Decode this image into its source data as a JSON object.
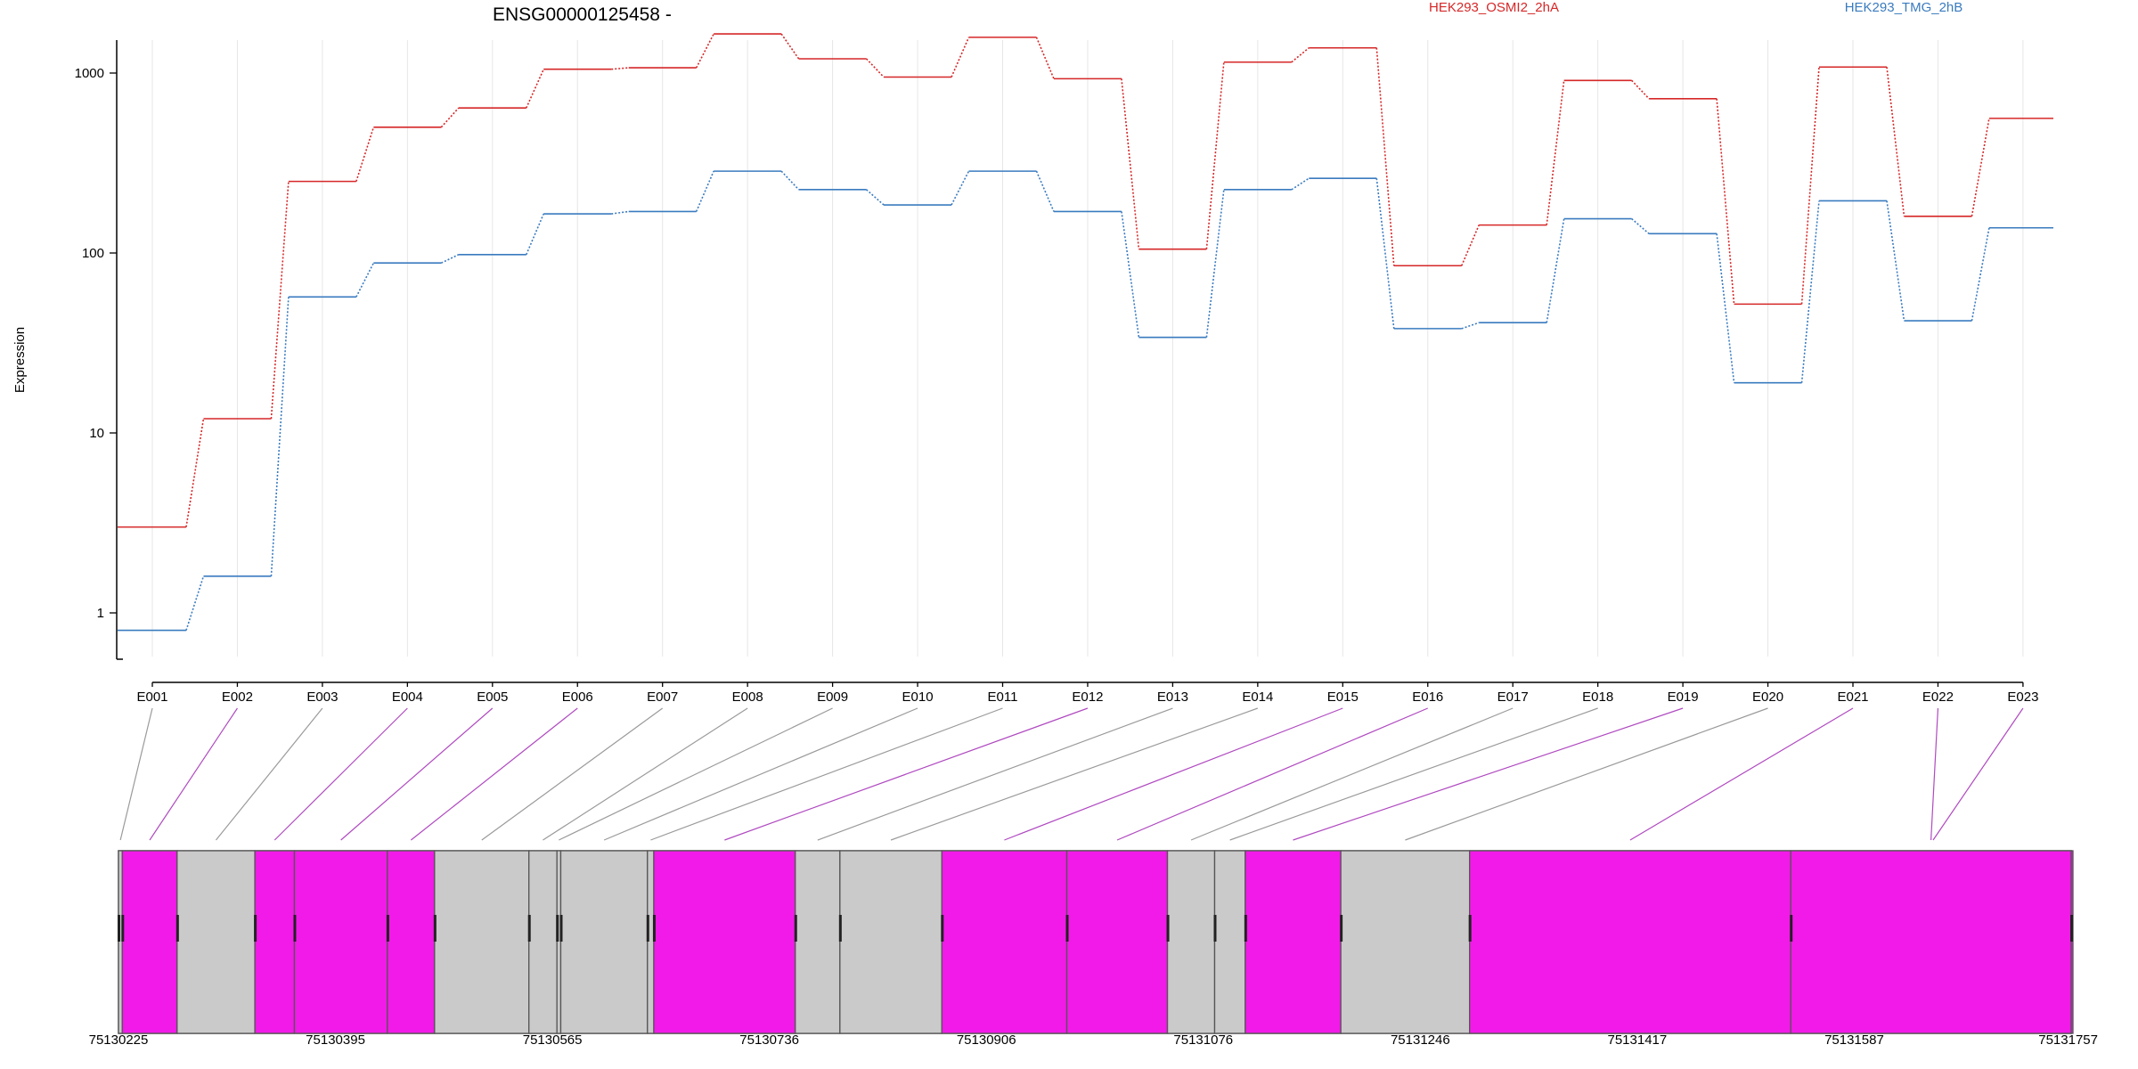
{
  "chart_data": {
    "type": "line",
    "title": "ENSG00000125458 -",
    "ylabel": "Expression",
    "yscale": "log",
    "ylim": [
      0.5,
      2000
    ],
    "yticks": [
      1,
      10,
      100,
      1000
    ],
    "ytick_labels": [
      "1",
      "10",
      "100",
      "1000"
    ],
    "grid": "vertical",
    "legend_placement": "top",
    "categories": [
      "E001",
      "E002",
      "E003",
      "E004",
      "E005",
      "E006",
      "E007",
      "E008",
      "E009",
      "E010",
      "E011",
      "E012",
      "E013",
      "E014",
      "E015",
      "E016",
      "E017",
      "E018",
      "E019",
      "E020",
      "E021",
      "E022",
      "E023"
    ],
    "series": [
      {
        "name": "HEK293_OSMI2_2hA",
        "color": "#d62728",
        "values": [
          3,
          12,
          250,
          500,
          640,
          1050,
          1070,
          1650,
          1200,
          950,
          1580,
          930,
          105,
          1150,
          1380,
          85,
          143,
          910,
          720,
          52,
          1080,
          160,
          560
        ]
      },
      {
        "name": "HEK293_TMG_2hB",
        "color": "#3a7bbf",
        "values": [
          0.8,
          1.6,
          57,
          88,
          98,
          165,
          170,
          285,
          225,
          185,
          285,
          170,
          34,
          225,
          260,
          38,
          41,
          155,
          128,
          19,
          195,
          42,
          138
        ]
      }
    ],
    "gene_model": {
      "coord_labels": [
        "75130225",
        "75130395",
        "75130565",
        "75130736",
        "75130906",
        "75131076",
        "75131246",
        "75131417",
        "75131587",
        "75131757"
      ],
      "exon_colors": {
        "highlight": "#f21ae8",
        "other": "#cacaca"
      },
      "exons": [
        {
          "id": "E001",
          "start": 75130225,
          "end": 75130228,
          "highlight": false
        },
        {
          "id": "E002",
          "start": 75130228,
          "end": 75130271,
          "highlight": true
        },
        {
          "id": "E003",
          "start": 75130271,
          "end": 75130332,
          "highlight": false
        },
        {
          "id": "E004",
          "start": 75130332,
          "end": 75130363,
          "highlight": true
        },
        {
          "id": "E005",
          "start": 75130363,
          "end": 75130436,
          "highlight": true
        },
        {
          "id": "E006",
          "start": 75130436,
          "end": 75130473,
          "highlight": true
        },
        {
          "id": "E007",
          "start": 75130473,
          "end": 75130547,
          "highlight": false
        },
        {
          "id": "E008",
          "start": 75130547,
          "end": 75130569,
          "highlight": false
        },
        {
          "id": "E009",
          "start": 75130569,
          "end": 75130572,
          "highlight": false
        },
        {
          "id": "E010",
          "start": 75130572,
          "end": 75130640,
          "highlight": false
        },
        {
          "id": "E011",
          "start": 75130640,
          "end": 75130645,
          "highlight": false
        },
        {
          "id": "E012",
          "start": 75130645,
          "end": 75130756,
          "highlight": true
        },
        {
          "id": "E013",
          "start": 75130756,
          "end": 75130791,
          "highlight": false
        },
        {
          "id": "E014",
          "start": 75130791,
          "end": 75130871,
          "highlight": false
        },
        {
          "id": "E015",
          "start": 75130871,
          "end": 75130969,
          "highlight": true
        },
        {
          "id": "E016",
          "start": 75130969,
          "end": 75131048,
          "highlight": true
        },
        {
          "id": "E017",
          "start": 75131048,
          "end": 75131085,
          "highlight": false
        },
        {
          "id": "E018",
          "start": 75131085,
          "end": 75131109,
          "highlight": false
        },
        {
          "id": "E019",
          "start": 75131109,
          "end": 75131184,
          "highlight": true
        },
        {
          "id": "E020",
          "start": 75131184,
          "end": 75131285,
          "highlight": false
        },
        {
          "id": "E021",
          "start": 75131285,
          "end": 75131537,
          "highlight": true
        },
        {
          "id": "E022",
          "start": 75131537,
          "end": 75131757,
          "highlight": true
        },
        {
          "id": "E023",
          "start": 75131757,
          "end": 75131757,
          "highlight": true
        }
      ]
    }
  }
}
